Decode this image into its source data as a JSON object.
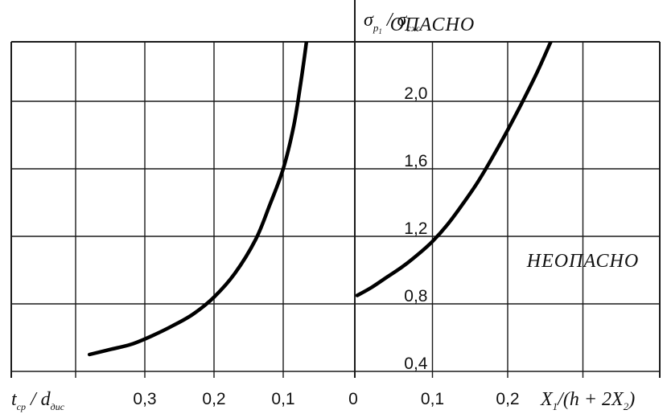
{
  "chart_data": [
    {
      "type": "line",
      "panel": "left",
      "xlabel": "t_ср/d_дис",
      "x_reversed": true,
      "xlim": [
        0.4,
        0.0
      ],
      "x_ticks": [
        {
          "value": 0.3,
          "label": "0,3"
        },
        {
          "value": 0.2,
          "label": "0,2"
        },
        {
          "value": 0.1,
          "label": "0,1"
        },
        {
          "value": 0.0,
          "label": "0"
        }
      ],
      "grid": true,
      "series": [
        {
          "x": [
            0.38,
            0.35,
            0.32,
            0.29,
            0.26,
            0.23,
            0.2,
            0.17,
            0.14,
            0.12,
            0.1,
            0.085,
            0.075,
            0.065,
            0.06
          ],
          "y": [
            0.5,
            0.53,
            0.56,
            0.61,
            0.67,
            0.74,
            0.84,
            0.98,
            1.18,
            1.38,
            1.6,
            1.85,
            2.1,
            2.4,
            2.6
          ]
        }
      ]
    },
    {
      "type": "line",
      "panel": "right",
      "xlabel": "X₁/(h + 2X₂)",
      "ylabel": "σ_p1/σ_сж",
      "xlim": [
        0.0,
        0.4
      ],
      "ylim": [
        0.35,
        2.6
      ],
      "x_ticks": [
        {
          "value": 0.0,
          "label": "0"
        },
        {
          "value": 0.1,
          "label": "0,1"
        },
        {
          "value": 0.2,
          "label": "0,2"
        }
      ],
      "y_ticks": [
        {
          "value": 0.4,
          "label": "0,4"
        },
        {
          "value": 0.8,
          "label": "0,8"
        },
        {
          "value": 1.2,
          "label": "1,2"
        },
        {
          "value": 1.6,
          "label": "1,6"
        },
        {
          "value": 2.0,
          "label": "2,0"
        }
      ],
      "grid": true,
      "annotations": [
        {
          "text": "ОПАСНО",
          "x": 0.1,
          "y": 2.42
        },
        {
          "text": "НЕОПАСНО",
          "x": 0.3,
          "y": 1.02
        }
      ],
      "series": [
        {
          "x": [
            0.0,
            0.02,
            0.04,
            0.06,
            0.08,
            0.1,
            0.12,
            0.14,
            0.16,
            0.18,
            0.2,
            0.22,
            0.24,
            0.26,
            0.28
          ],
          "y": [
            0.85,
            0.9,
            0.96,
            1.02,
            1.09,
            1.17,
            1.27,
            1.39,
            1.52,
            1.67,
            1.83,
            2.0,
            2.18,
            2.38,
            2.58
          ]
        }
      ]
    }
  ]
}
